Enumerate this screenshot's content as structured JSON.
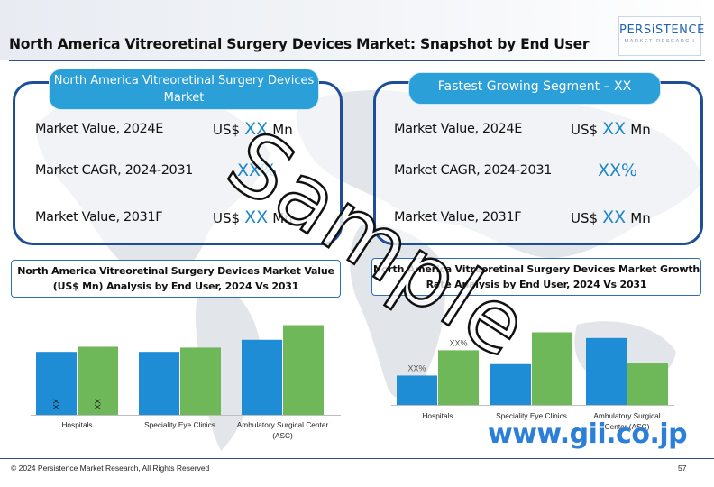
{
  "page": {
    "title": "North America Vitreoretinal Surgery Devices Market: Snapshot by End User"
  },
  "logo": {
    "name": "PERSiSTENCE",
    "tagline": "MARKET RESEARCH"
  },
  "market_panel": {
    "title": "North America Vitreoretinal Surgery Devices Market",
    "rows": [
      {
        "label": "Market Value, 2024E",
        "prefix": "US$",
        "value": "XX",
        "suffix": "Mn"
      },
      {
        "label": "Market CAGR, 2024-2031",
        "prefix": "",
        "value": "XX%",
        "suffix": ""
      },
      {
        "label": "Market Value, 2031F",
        "prefix": "US$",
        "value": "XX",
        "suffix": "Mn"
      }
    ]
  },
  "segment_panel": {
    "title": "Fastest Growing Segment – XX",
    "rows": [
      {
        "label": "Market Value, 2024E",
        "prefix": "US$",
        "value": "XX",
        "suffix": "Mn"
      },
      {
        "label": "Market CAGR, 2024-2031",
        "prefix": "",
        "value": "XX%",
        "suffix": ""
      },
      {
        "label": "Market Value, 2031F",
        "prefix": "US$",
        "value": "XX",
        "suffix": "Mn"
      }
    ]
  },
  "colors": {
    "series_2024": "#1f8dd6",
    "series_2031": "#6fb85a",
    "accent": "#1d86c9",
    "panel_border": "#1d4e97",
    "header_fill": "#2b9fd8"
  },
  "chart_data": [
    {
      "type": "bar",
      "title": "North America Vitreoretinal Surgery Devices Market Value (US$ Mn) Analysis by End User, 2024 Vs 2031",
      "categories": [
        "Hospitals",
        "Speciality Eye Clinics",
        "Ambulatory Surgical Center (ASC)"
      ],
      "series": [
        {
          "values": [
            73,
            73,
            87
          ]
        },
        {
          "values": [
            79,
            78,
            104
          ]
        }
      ],
      "data_labels": [
        "XX",
        "XX"
      ],
      "ylim": [
        0,
        115
      ],
      "grid": false,
      "legend": "none"
    },
    {
      "type": "bar",
      "title": "North America Vitreoretinal Surgery Devices Market Growth Rate Analysis by End User, 2024 Vs 2031",
      "categories": [
        "Hospitals",
        "Speciality Eye Clinics",
        "Ambulatory Surgical Center (ASC)"
      ],
      "series": [
        {
          "values": [
            36,
            50,
            82
          ]
        },
        {
          "values": [
            67,
            89,
            51
          ]
        }
      ],
      "data_labels": [
        "XX%",
        "XX%"
      ],
      "ylim": [
        0,
        105
      ],
      "grid": false,
      "legend": "none"
    }
  ],
  "footer": {
    "copyright": "© 2024 Persistence Market Research, All Rights Reserved",
    "page_number": "57"
  },
  "watermark": {
    "text": "Sample"
  },
  "stamp": {
    "text": "www.gii.co.jp"
  }
}
